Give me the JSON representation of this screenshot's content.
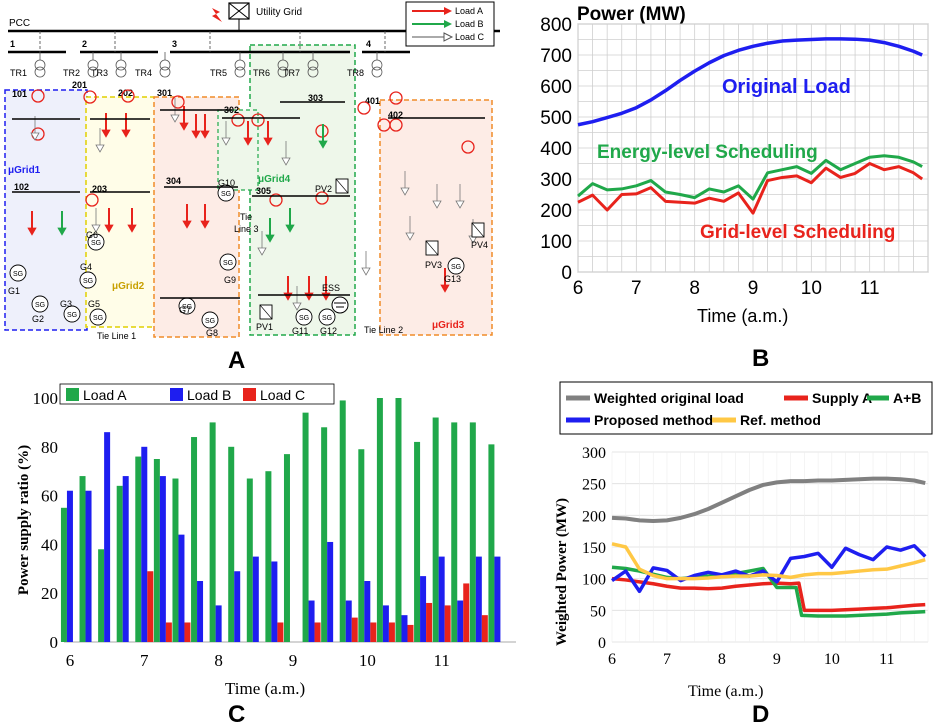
{
  "panel_labels": {
    "a": "A",
    "b": "B",
    "c": "C",
    "d": "D"
  },
  "diagram": {
    "pcc": "PCC",
    "utility": "Utility Grid",
    "legend": [
      "Load A",
      "Load B",
      "Load C"
    ],
    "buses": [
      "1",
      "2",
      "3",
      "4"
    ],
    "transformers": [
      "TR1",
      "TR2",
      "TR3",
      "TR4",
      "TR5",
      "TR6",
      "TR7",
      "TR8"
    ],
    "nodes": [
      "101",
      "102",
      "201",
      "202",
      "203",
      "301",
      "302",
      "303",
      "304",
      "305",
      "401",
      "402"
    ],
    "microgrids": [
      "μGrid1",
      "μGrid2",
      "μGrid3",
      "μGrid4"
    ],
    "gens": [
      "G1",
      "G2",
      "G3",
      "G4",
      "G5",
      "G6",
      "G7",
      "G8",
      "G9",
      "G10",
      "G11",
      "G12",
      "G13"
    ],
    "pvs": [
      "PV1",
      "PV2",
      "PV3",
      "PV4"
    ],
    "ess": "ESS",
    "tie_lines": [
      "Tie Line 1",
      "Tie Line 2",
      "Tie Line 3"
    ],
    "tie_label": "Tie",
    "line3": "Line 3",
    "sg": "SG"
  },
  "colors": {
    "red": "#e8231c",
    "green": "#20a84a",
    "blue": "#1e1ef0",
    "gray": "#808080",
    "yellow": "#ffc845",
    "orange": "#f08c28"
  },
  "chart_data": [
    {
      "id": "B",
      "type": "line",
      "title": "Power (MW)",
      "xlabel": "Time (a.m.)",
      "xlim": [
        6,
        12
      ],
      "ylim": [
        0,
        800
      ],
      "xticks": [
        6,
        7,
        8,
        9,
        10,
        11
      ],
      "yticks": [
        0,
        100,
        200,
        300,
        400,
        500,
        600,
        700,
        800
      ],
      "grid": true,
      "series": [
        {
          "name": "Original Load",
          "color": "#1e1ef0",
          "x": [
            6,
            6.25,
            6.5,
            6.75,
            7,
            7.25,
            7.5,
            7.75,
            8,
            8.25,
            8.5,
            8.75,
            9,
            9.25,
            9.5,
            9.75,
            10,
            10.25,
            10.5,
            10.75,
            11,
            11.25,
            11.5,
            11.75,
            11.9
          ],
          "y": [
            475,
            485,
            498,
            512,
            530,
            555,
            585,
            618,
            648,
            675,
            698,
            715,
            728,
            738,
            745,
            748,
            750,
            752,
            752,
            751,
            748,
            740,
            728,
            712,
            700
          ]
        },
        {
          "name": "Energy-level Scheduling",
          "color": "#20a84a",
          "x": [
            6,
            6.25,
            6.5,
            6.75,
            7,
            7.25,
            7.5,
            7.75,
            8,
            8.25,
            8.5,
            8.75,
            9,
            9.25,
            9.5,
            9.75,
            10,
            10.25,
            10.5,
            10.75,
            11,
            11.25,
            11.5,
            11.75,
            11.9
          ],
          "y": [
            245,
            285,
            265,
            268,
            278,
            295,
            258,
            250,
            240,
            268,
            258,
            278,
            235,
            320,
            330,
            340,
            318,
            360,
            330,
            350,
            370,
            375,
            370,
            355,
            340
          ]
        },
        {
          "name": "Grid-level Scheduling",
          "color": "#e8231c",
          "x": [
            6,
            6.25,
            6.5,
            6.75,
            7,
            7.25,
            7.5,
            7.75,
            8,
            8.25,
            8.5,
            8.75,
            9,
            9.25,
            9.5,
            9.75,
            10,
            10.25,
            10.5,
            10.75,
            11,
            11.25,
            11.5,
            11.75,
            11.9
          ],
          "y": [
            225,
            248,
            200,
            250,
            252,
            272,
            228,
            225,
            222,
            238,
            228,
            255,
            190,
            295,
            305,
            310,
            288,
            335,
            305,
            318,
            350,
            330,
            340,
            320,
            300
          ]
        }
      ]
    },
    {
      "id": "C",
      "type": "bar",
      "ylabel": "Power supply ratio (%)",
      "xlabel": "Time (a.m.)",
      "ylim": [
        0,
        100
      ],
      "yticks": [
        0,
        20,
        40,
        60,
        80,
        100
      ],
      "xticks": [
        6,
        7,
        8,
        9,
        10,
        11
      ],
      "xlim": [
        5.92,
        12.0
      ],
      "x": [
        6,
        6.25,
        6.5,
        6.75,
        7,
        7.25,
        7.5,
        7.75,
        8,
        8.25,
        8.5,
        8.75,
        9,
        9.25,
        9.5,
        9.75,
        10,
        10.25,
        10.5,
        10.75,
        11,
        11.25,
        11.5,
        11.75
      ],
      "series": [
        {
          "name": "Load A",
          "color": "#20a84a",
          "values": [
            55,
            68,
            38,
            64,
            76,
            75,
            67,
            84,
            90,
            80,
            67,
            70,
            77,
            94,
            88,
            99,
            79,
            100,
            100,
            82,
            92,
            90,
            90,
            81
          ]
        },
        {
          "name": "Load B",
          "color": "#1e1ef0",
          "values": [
            62,
            62,
            86,
            68,
            80,
            68,
            44,
            25,
            15,
            29,
            35,
            33,
            0,
            17,
            41,
            17,
            25,
            15,
            11,
            27,
            35,
            17,
            35,
            35
          ]
        },
        {
          "name": "Load C",
          "color": "#e8231c",
          "values": [
            0,
            0,
            0,
            0,
            29,
            8,
            8,
            0,
            0,
            0,
            0,
            8,
            0,
            8,
            0,
            10,
            8,
            8,
            7,
            16,
            15,
            24,
            11,
            0
          ]
        }
      ]
    },
    {
      "id": "D",
      "type": "line",
      "ylabel": "Weighted Power (MW)",
      "xlabel": "Time (a.m.)",
      "xlim": [
        6,
        11.75
      ],
      "ylim": [
        0,
        300
      ],
      "yticks": [
        0,
        50,
        100,
        150,
        200,
        250,
        300
      ],
      "xticks": [
        6,
        7,
        8,
        9,
        10,
        11
      ],
      "grid": true,
      "series": [
        {
          "name": "Weighted original load",
          "color": "#808080",
          "x": [
            6,
            6.25,
            6.5,
            6.75,
            7,
            7.25,
            7.5,
            7.75,
            8,
            8.25,
            8.5,
            8.75,
            9,
            9.25,
            9.5,
            9.75,
            10,
            10.25,
            10.5,
            10.75,
            11,
            11.25,
            11.5,
            11.7
          ],
          "y": [
            196,
            195,
            192,
            191,
            192,
            196,
            202,
            210,
            220,
            230,
            240,
            248,
            252,
            254,
            254,
            255,
            255,
            256,
            257,
            258,
            258,
            257,
            255,
            251
          ]
        },
        {
          "name": "Supply A",
          "color": "#e8231c",
          "x": [
            6,
            6.25,
            6.5,
            6.75,
            7,
            7.25,
            7.5,
            7.75,
            8,
            8.25,
            8.5,
            8.75,
            9,
            9.25,
            9.4,
            9.5,
            9.75,
            10,
            10.25,
            10.5,
            10.75,
            11,
            11.25,
            11.5,
            11.7
          ],
          "y": [
            100,
            98,
            95,
            92,
            88,
            85,
            85,
            84,
            85,
            88,
            90,
            92,
            93,
            92,
            93,
            50,
            50,
            50,
            51,
            52,
            53,
            54,
            56,
            58,
            59
          ]
        },
        {
          "name": "A+B",
          "color": "#20a84a",
          "x": [
            6,
            6.25,
            6.5,
            6.75,
            7,
            7.25,
            7.5,
            7.75,
            8,
            8.25,
            8.5,
            8.75,
            9,
            9.2,
            9.35,
            9.45,
            9.75,
            10,
            10.25,
            10.5,
            10.75,
            11,
            11.25,
            11.5,
            11.7
          ],
          "y": [
            118,
            116,
            112,
            107,
            102,
            100,
            102,
            104,
            106,
            108,
            112,
            116,
            86,
            86,
            86,
            42,
            41,
            41,
            41,
            42,
            43,
            44,
            46,
            47,
            48
          ]
        },
        {
          "name": "Proposed method",
          "color": "#1e1ef0",
          "x": [
            6,
            6.25,
            6.5,
            6.75,
            7,
            7.25,
            7.5,
            7.75,
            8,
            8.25,
            8.5,
            8.75,
            9,
            9.25,
            9.5,
            9.75,
            10,
            10.25,
            10.5,
            10.75,
            11,
            11.25,
            11.5,
            11.7
          ],
          "y": [
            97,
            112,
            80,
            117,
            113,
            97,
            105,
            110,
            106,
            112,
            104,
            112,
            95,
            132,
            135,
            140,
            118,
            148,
            138,
            130,
            150,
            145,
            152,
            135
          ]
        },
        {
          "name": "Ref. method",
          "color": "#ffc845",
          "x": [
            6,
            6.25,
            6.5,
            6.75,
            7,
            7.25,
            7.5,
            7.75,
            8,
            8.25,
            8.5,
            8.75,
            9,
            9.25,
            9.5,
            9.75,
            10,
            10.25,
            10.5,
            10.75,
            11,
            11.25,
            11.5,
            11.7
          ],
          "y": [
            155,
            150,
            115,
            105,
            100,
            100,
            100,
            101,
            103,
            104,
            104,
            106,
            105,
            102,
            106,
            108,
            108,
            110,
            112,
            114,
            115,
            120,
            125,
            130
          ]
        }
      ]
    }
  ]
}
